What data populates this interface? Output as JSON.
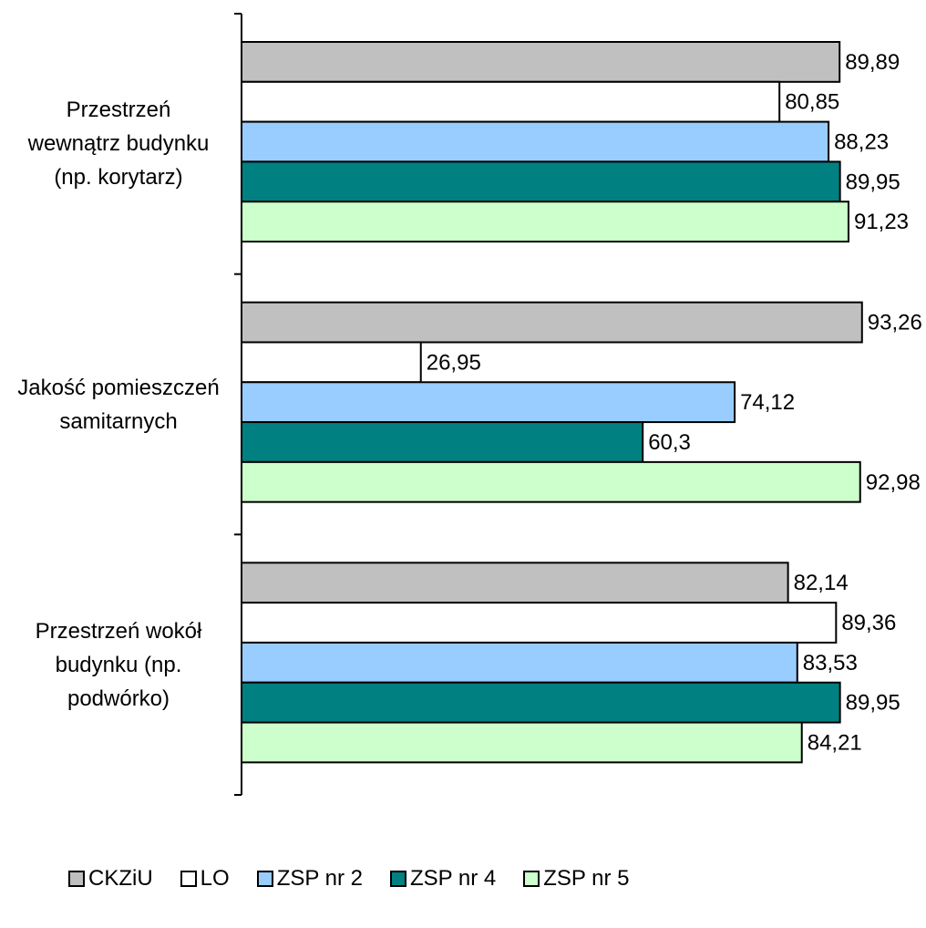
{
  "chart_data": {
    "type": "bar",
    "orientation": "horizontal",
    "title": "",
    "xlabel": "",
    "ylabel": "",
    "xlim": [
      0,
      100
    ],
    "categories": [
      "Przestrzeń wewnątrz budynku (np. korytarz)",
      "Jakość pomieszczeń samitarnych",
      "Przestrzeń wokół budynku (np. podwórko)"
    ],
    "category_lines": [
      [
        "Przestrzeń",
        "wewnątrz budynku",
        "(np. korytarz)"
      ],
      [
        "Jakość pomieszczeń",
        "samitarnych"
      ],
      [
        "Przestrzeń wokół",
        "budynku (np.",
        "podwórko)"
      ]
    ],
    "series": [
      {
        "name": "CKZiU",
        "color": "#c0c0c0",
        "values": [
          89.89,
          93.26,
          82.14
        ],
        "labels": [
          "89,89",
          "93,26",
          "82,14"
        ]
      },
      {
        "name": "LO",
        "color": "#ffffff",
        "values": [
          80.85,
          26.95,
          89.36
        ],
        "labels": [
          "80,85",
          "26,95",
          "89,36"
        ]
      },
      {
        "name": "ZSP nr 2",
        "color": "#99ccff",
        "values": [
          88.23,
          74.12,
          83.53
        ],
        "labels": [
          "88,23",
          "74,12",
          "83,53"
        ]
      },
      {
        "name": "ZSP nr 4",
        "color": "#008080",
        "values": [
          89.95,
          60.3,
          89.95
        ],
        "labels": [
          "89,95",
          "60,3",
          "89,95"
        ]
      },
      {
        "name": "ZSP nr 5",
        "color": "#ccffcc",
        "values": [
          91.23,
          92.98,
          84.21
        ],
        "labels": [
          "91,23",
          "92,98",
          "84,21"
        ]
      }
    ],
    "legend_position": "bottom",
    "grid": false
  }
}
